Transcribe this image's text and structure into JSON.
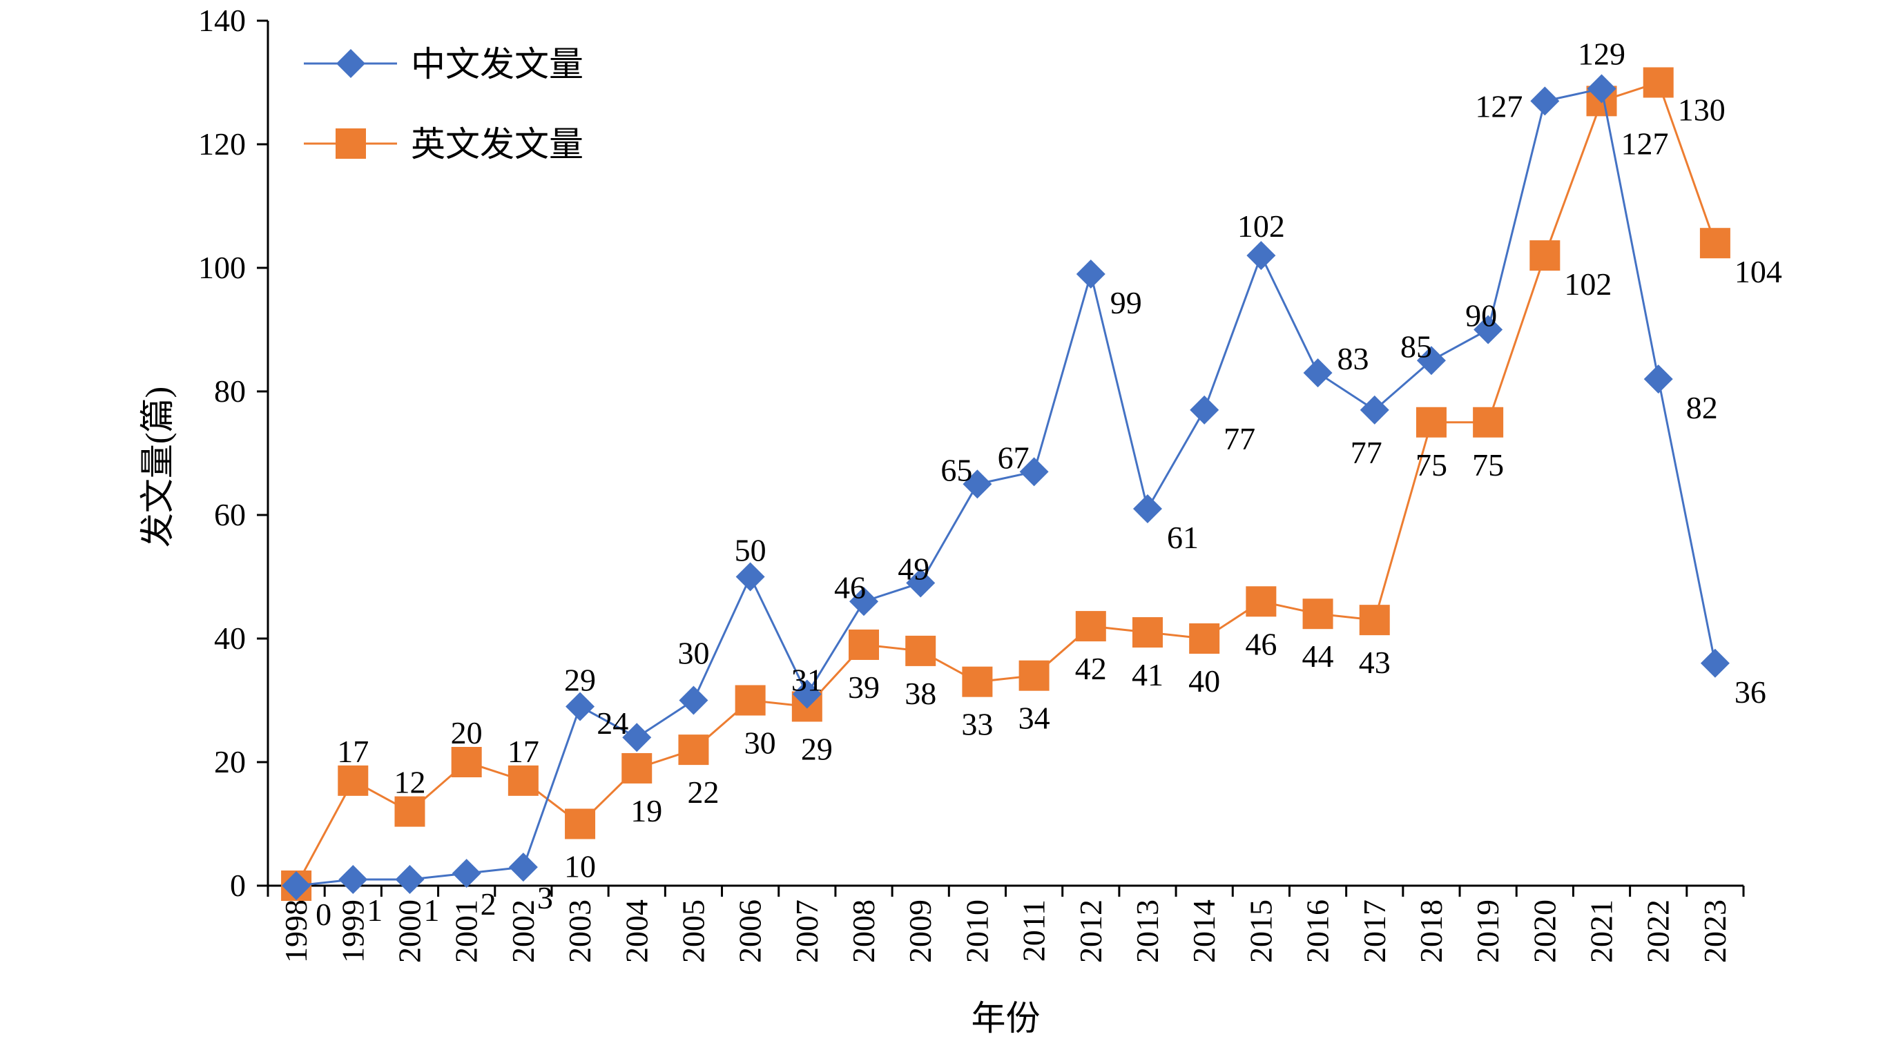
{
  "chart_data": {
    "type": "line",
    "xlabel": "年份",
    "ylabel": "发文量(篇)",
    "ylim": [
      0,
      140
    ],
    "yticks": [
      0,
      20,
      40,
      60,
      80,
      100,
      120,
      140
    ],
    "grid": false,
    "legend_position": "top-left",
    "categories": [
      "1998",
      "1999",
      "2000",
      "2001",
      "2002",
      "2003",
      "2004",
      "2005",
      "2006",
      "2007",
      "2008",
      "2009",
      "2010",
      "2011",
      "2012",
      "2013",
      "2014",
      "2015",
      "2016",
      "2017",
      "2018",
      "2019",
      "2020",
      "2021",
      "2022",
      "2023"
    ],
    "series": [
      {
        "name": "中文发文量",
        "marker": "diamond",
        "color": "#4472C4",
        "values": [
          0,
          1,
          1,
          2,
          3,
          29,
          24,
          30,
          50,
          31,
          46,
          49,
          65,
          67,
          99,
          61,
          77,
          102,
          83,
          77,
          85,
          90,
          127,
          129,
          82,
          36
        ],
        "labels": [
          null,
          "1",
          "1",
          "2",
          "3",
          "29",
          "24",
          "30",
          "50",
          "31",
          "46",
          "49",
          "65",
          "67",
          "99",
          "61",
          "77",
          "102",
          "83",
          "77",
          "85",
          "90",
          "127",
          "129",
          "82",
          "36"
        ]
      },
      {
        "name": "英文发文量",
        "marker": "square",
        "color": "#ED7D31",
        "values": [
          0,
          17,
          12,
          20,
          17,
          10,
          19,
          22,
          30,
          29,
          39,
          38,
          33,
          34,
          42,
          41,
          40,
          46,
          44,
          43,
          75,
          75,
          102,
          127,
          130,
          104
        ],
        "labels": [
          "0",
          "17",
          "12",
          "20",
          "17",
          "10",
          "19",
          "22",
          "30",
          "29",
          "39",
          "38",
          "33",
          "34",
          "42",
          "41",
          "40",
          "46",
          "44",
          "43",
          "75",
          "75",
          "102",
          "127",
          "130",
          "104"
        ]
      }
    ]
  }
}
